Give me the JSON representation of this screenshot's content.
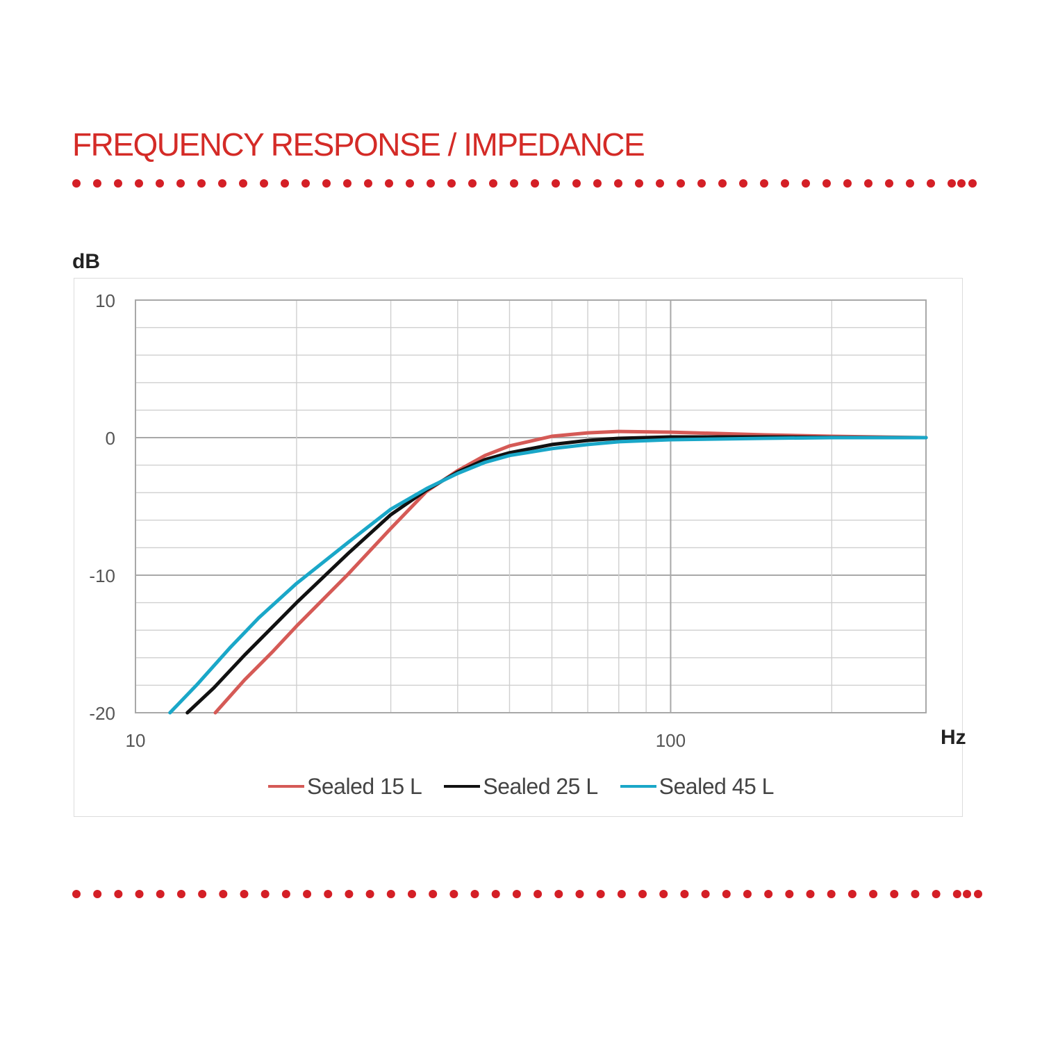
{
  "heading": {
    "text": "FREQUENCY RESPONSE / IMPEDANCE",
    "color": "#d42b27"
  },
  "separator_color": "#d41f26",
  "chart_data": {
    "type": "line",
    "title": "FREQUENCY RESPONSE / IMPEDANCE",
    "xlabel": "Hz",
    "ylabel": "dB",
    "x_scale": "log",
    "xlim": [
      10,
      300
    ],
    "ylim": [
      -20,
      10
    ],
    "x_tick_labels": [
      "10",
      "100"
    ],
    "y_tick_labels": [
      "10",
      "0",
      "-10",
      "-20"
    ],
    "y_ticks": [
      10,
      0,
      -10,
      -20
    ],
    "x_label_ticks": [
      10,
      100
    ],
    "x_major_grid": [
      10,
      20,
      30,
      40,
      50,
      60,
      70,
      80,
      90,
      100,
      200,
      300
    ],
    "y_grid_step": 2,
    "grid": true,
    "legend_position": "bottom",
    "series": [
      {
        "name": "Sealed 15 L",
        "color": "#d55a56",
        "points": [
          [
            14.1,
            -20
          ],
          [
            16,
            -17.6
          ],
          [
            18,
            -15.6
          ],
          [
            20,
            -13.7
          ],
          [
            25,
            -9.9
          ],
          [
            30,
            -6.6
          ],
          [
            35,
            -3.9
          ],
          [
            40,
            -2.4
          ],
          [
            45,
            -1.3
          ],
          [
            50,
            -0.6
          ],
          [
            60,
            0.1
          ],
          [
            70,
            0.35
          ],
          [
            80,
            0.45
          ],
          [
            100,
            0.4
          ],
          [
            150,
            0.2
          ],
          [
            200,
            0.1
          ],
          [
            300,
            0
          ]
        ]
      },
      {
        "name": "Sealed 25 L",
        "color": "#111111",
        "points": [
          [
            12.5,
            -20
          ],
          [
            14,
            -18.2
          ],
          [
            16,
            -15.8
          ],
          [
            18,
            -13.8
          ],
          [
            20,
            -12
          ],
          [
            25,
            -8.4
          ],
          [
            30,
            -5.6
          ],
          [
            35,
            -3.8
          ],
          [
            40,
            -2.5
          ],
          [
            45,
            -1.6
          ],
          [
            50,
            -1.1
          ],
          [
            60,
            -0.5
          ],
          [
            70,
            -0.2
          ],
          [
            80,
            -0.05
          ],
          [
            100,
            0.05
          ],
          [
            150,
            0.05
          ],
          [
            200,
            0.02
          ],
          [
            300,
            0
          ]
        ]
      },
      {
        "name": "Sealed 45 L",
        "color": "#1aa7c8",
        "points": [
          [
            11.6,
            -20
          ],
          [
            13,
            -18
          ],
          [
            15,
            -15.3
          ],
          [
            17,
            -13.1
          ],
          [
            20,
            -10.6
          ],
          [
            25,
            -7.6
          ],
          [
            30,
            -5.2
          ],
          [
            35,
            -3.7
          ],
          [
            40,
            -2.6
          ],
          [
            45,
            -1.8
          ],
          [
            50,
            -1.3
          ],
          [
            60,
            -0.8
          ],
          [
            70,
            -0.5
          ],
          [
            80,
            -0.3
          ],
          [
            100,
            -0.15
          ],
          [
            150,
            -0.05
          ],
          [
            200,
            0
          ],
          [
            300,
            0
          ]
        ]
      }
    ]
  }
}
